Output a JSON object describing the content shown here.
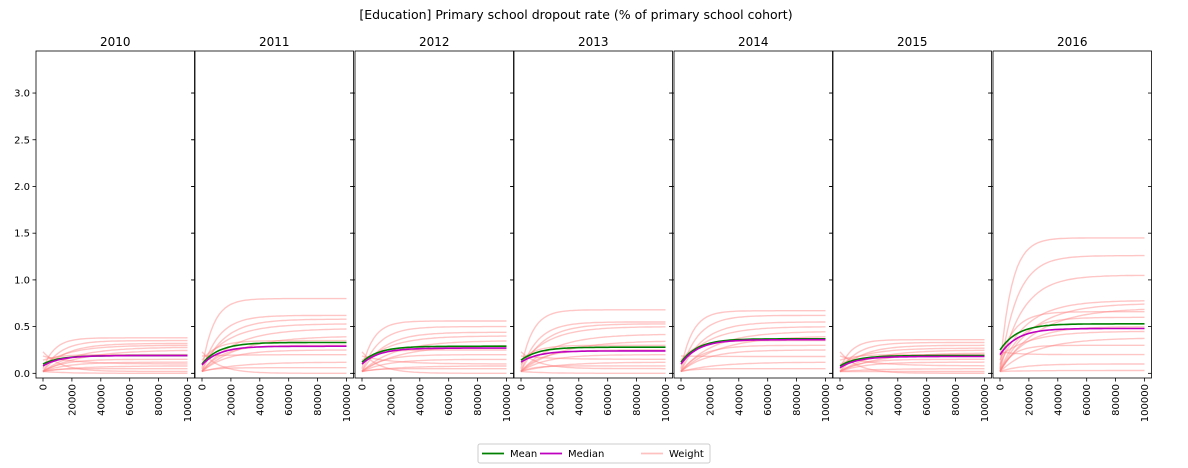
{
  "chart_data": {
    "type": "line",
    "title": "[Education] Primary school dropout rate (% of primary school cohort)",
    "panels": [
      "2010",
      "2011",
      "2012",
      "2013",
      "2014",
      "2015",
      "2016"
    ],
    "xlim": [
      0,
      100000
    ],
    "ylim": [
      -0.05,
      3.45
    ],
    "xticks": [
      0,
      20000,
      40000,
      60000,
      80000,
      100000
    ],
    "yticks": [
      0.0,
      0.5,
      1.0,
      1.5,
      2.0,
      2.5,
      3.0
    ],
    "xtick_labels": [
      "0",
      "20000",
      "40000",
      "60000",
      "80000",
      "100000"
    ],
    "ytick_labels": [
      "0.0",
      "0.5",
      "1.0",
      "1.5",
      "2.0",
      "2.5",
      "3.0"
    ],
    "legend": {
      "position": "bottom-center",
      "entries": [
        {
          "label": "Mean",
          "color": "#008000"
        },
        {
          "label": "Median",
          "color": "#bf00bf"
        },
        {
          "label": "Weight",
          "color": "#ffc0c0"
        }
      ]
    },
    "series": [
      {
        "name": "Mean",
        "color": "#008000",
        "curve": "saturating",
        "start": [
          0.1,
          0.1,
          0.12,
          0.14,
          0.12,
          0.08,
          0.25
        ],
        "end": [
          0.19,
          0.33,
          0.29,
          0.28,
          0.37,
          0.19,
          0.53
        ]
      },
      {
        "name": "Median",
        "color": "#bf00bf",
        "curve": "saturating",
        "start": [
          0.08,
          0.09,
          0.1,
          0.12,
          0.1,
          0.06,
          0.2
        ],
        "end": [
          0.19,
          0.29,
          0.27,
          0.24,
          0.36,
          0.18,
          0.48
        ]
      }
    ],
    "weight_final_values": [
      [
        0.38,
        0.35,
        0.32,
        0.3,
        0.28,
        0.25,
        0.2,
        0.15,
        0.12,
        0.1,
        0.08,
        0.05,
        0.02,
        0.0
      ],
      [
        0.8,
        0.62,
        0.58,
        0.53,
        0.48,
        0.4,
        0.35,
        0.3,
        0.25,
        0.2,
        0.12,
        0.06,
        0.0
      ],
      [
        0.56,
        0.5,
        0.44,
        0.4,
        0.35,
        0.3,
        0.25,
        0.2,
        0.15,
        0.1,
        0.08,
        0.05,
        0.0
      ],
      [
        0.68,
        0.55,
        0.53,
        0.5,
        0.42,
        0.35,
        0.3,
        0.25,
        0.2,
        0.15,
        0.12,
        0.08,
        0.05,
        0.0
      ],
      [
        0.67,
        0.62,
        0.55,
        0.5,
        0.45,
        0.4,
        0.35,
        0.3,
        0.25,
        0.18,
        0.12,
        0.05
      ],
      [
        0.36,
        0.33,
        0.3,
        0.27,
        0.25,
        0.22,
        0.2,
        0.15,
        0.12,
        0.08,
        0.05,
        0.02,
        0.0
      ],
      [
        1.45,
        1.26,
        1.05,
        0.78,
        0.75,
        0.7,
        0.66,
        0.6,
        0.5,
        0.45,
        0.38,
        0.3,
        0.2,
        0.1,
        0.03
      ]
    ]
  }
}
